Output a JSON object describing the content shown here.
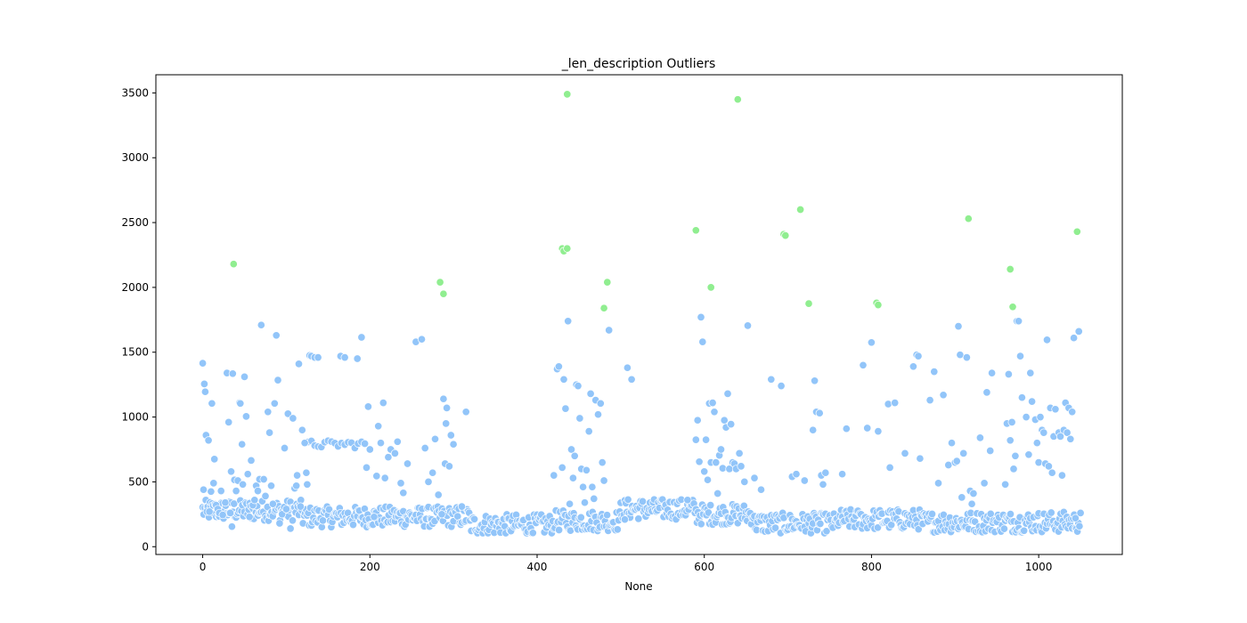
{
  "chart_data": {
    "type": "scatter",
    "title": "_len_description Outliers",
    "xlabel": "None",
    "ylabel": "",
    "xlim": [
      -56,
      1100
    ],
    "ylim": [
      -60,
      3640
    ],
    "xticks": [
      0,
      200,
      400,
      600,
      800,
      1000
    ],
    "yticks": [
      0,
      500,
      1000,
      1500,
      2000,
      2500,
      3000,
      3500
    ],
    "grid": false,
    "legend": "none",
    "colors": {
      "normal": "#92c5f9",
      "outlier": "#90ee90",
      "marker_edge": "#ffffff"
    },
    "series": [
      {
        "points": [
          [
            0,
            1415
          ],
          [
            1,
            440
          ],
          [
            2,
            1255
          ],
          [
            3,
            1195
          ],
          [
            4,
            860
          ],
          [
            5,
            270
          ],
          [
            7,
            820
          ],
          [
            8,
            270
          ],
          [
            10,
            425
          ],
          [
            11,
            1105
          ],
          [
            13,
            490
          ],
          [
            14,
            675
          ],
          [
            16,
            320
          ],
          [
            18,
            290
          ],
          [
            20,
            260
          ],
          [
            22,
            430
          ],
          [
            24,
            245
          ],
          [
            27,
            340
          ],
          [
            29,
            1340
          ],
          [
            31,
            960
          ],
          [
            33,
            260
          ],
          [
            34,
            580
          ],
          [
            35,
            155
          ],
          [
            36,
            1335
          ],
          [
            38,
            515
          ],
          [
            40,
            430
          ],
          [
            42,
            510
          ],
          [
            44,
            1110
          ],
          [
            45,
            1105
          ],
          [
            47,
            790
          ],
          [
            48,
            480
          ],
          [
            50,
            1310
          ],
          [
            52,
            1005
          ],
          [
            54,
            560
          ],
          [
            56,
            230
          ],
          [
            58,
            665
          ],
          [
            60,
            320
          ],
          [
            62,
            360
          ],
          [
            64,
            470
          ],
          [
            66,
            430
          ],
          [
            68,
            520
          ],
          [
            70,
            1710
          ],
          [
            73,
            520
          ],
          [
            75,
            390
          ],
          [
            78,
            1040
          ],
          [
            80,
            880
          ],
          [
            82,
            470
          ],
          [
            84,
            330
          ],
          [
            86,
            1105
          ],
          [
            88,
            1630
          ],
          [
            90,
            1285
          ],
          [
            92,
            180
          ],
          [
            95,
            250
          ],
          [
            98,
            760
          ],
          [
            100,
            290
          ],
          [
            102,
            1025
          ],
          [
            105,
            140
          ],
          [
            108,
            990
          ],
          [
            110,
            450
          ],
          [
            112,
            470
          ],
          [
            113,
            550
          ],
          [
            115,
            1410
          ],
          [
            117,
            310
          ],
          [
            119,
            900
          ],
          [
            122,
            800
          ],
          [
            124,
            570
          ],
          [
            125,
            480
          ],
          [
            128,
            1475
          ],
          [
            130,
            1470
          ],
          [
            134,
            1460
          ],
          [
            138,
            1460
          ],
          [
            165,
            1470
          ],
          [
            170,
            1460
          ],
          [
            185,
            1450
          ],
          [
            190,
            1615
          ],
          [
            196,
            610
          ],
          [
            198,
            1080
          ],
          [
            200,
            750
          ],
          [
            205,
            230
          ],
          [
            208,
            545
          ],
          [
            210,
            930
          ],
          [
            213,
            800
          ],
          [
            216,
            1110
          ],
          [
            218,
            530
          ],
          [
            222,
            690
          ],
          [
            225,
            750
          ],
          [
            230,
            720
          ],
          [
            233,
            810
          ],
          [
            237,
            490
          ],
          [
            240,
            415
          ],
          [
            245,
            640
          ],
          [
            255,
            1580
          ],
          [
            262,
            1600
          ],
          [
            266,
            760
          ],
          [
            270,
            500
          ],
          [
            275,
            570
          ],
          [
            278,
            830
          ],
          [
            282,
            400
          ],
          [
            286,
            250
          ],
          [
            288,
            1140
          ],
          [
            290,
            640
          ],
          [
            291,
            950
          ],
          [
            292,
            1070
          ],
          [
            295,
            620
          ],
          [
            297,
            860
          ],
          [
            300,
            790
          ],
          [
            310,
            310
          ],
          [
            315,
            1040
          ],
          [
            420,
            550
          ],
          [
            424,
            1370
          ],
          [
            426,
            1390
          ],
          [
            430,
            610
          ],
          [
            432,
            1290
          ],
          [
            434,
            1065
          ],
          [
            437,
            1740
          ],
          [
            439,
            330
          ],
          [
            441,
            750
          ],
          [
            443,
            530
          ],
          [
            445,
            700
          ],
          [
            447,
            1250
          ],
          [
            449,
            1240
          ],
          [
            451,
            990
          ],
          [
            453,
            600
          ],
          [
            455,
            460
          ],
          [
            457,
            340
          ],
          [
            459,
            590
          ],
          [
            462,
            890
          ],
          [
            464,
            1180
          ],
          [
            466,
            460
          ],
          [
            468,
            370
          ],
          [
            470,
            1130
          ],
          [
            473,
            1020
          ],
          [
            476,
            1105
          ],
          [
            478,
            650
          ],
          [
            480,
            510
          ],
          [
            486,
            1670
          ],
          [
            505,
            210
          ],
          [
            508,
            1380
          ],
          [
            513,
            1290
          ],
          [
            580,
            360
          ],
          [
            590,
            825
          ],
          [
            592,
            975
          ],
          [
            594,
            655
          ],
          [
            596,
            1770
          ],
          [
            598,
            1580
          ],
          [
            600,
            580
          ],
          [
            602,
            825
          ],
          [
            604,
            515
          ],
          [
            606,
            1105
          ],
          [
            608,
            650
          ],
          [
            610,
            1110
          ],
          [
            612,
            1040
          ],
          [
            614,
            650
          ],
          [
            616,
            410
          ],
          [
            618,
            705
          ],
          [
            620,
            750
          ],
          [
            622,
            605
          ],
          [
            624,
            975
          ],
          [
            626,
            920
          ],
          [
            628,
            1180
          ],
          [
            630,
            600
          ],
          [
            632,
            945
          ],
          [
            634,
            650
          ],
          [
            636,
            640
          ],
          [
            638,
            600
          ],
          [
            642,
            720
          ],
          [
            644,
            620
          ],
          [
            648,
            500
          ],
          [
            652,
            1705
          ],
          [
            660,
            530
          ],
          [
            668,
            440
          ],
          [
            680,
            1290
          ],
          [
            692,
            1240
          ],
          [
            705,
            540
          ],
          [
            710,
            560
          ],
          [
            720,
            510
          ],
          [
            730,
            900
          ],
          [
            732,
            1280
          ],
          [
            734,
            1040
          ],
          [
            738,
            1030
          ],
          [
            740,
            550
          ],
          [
            742,
            480
          ],
          [
            745,
            570
          ],
          [
            765,
            560
          ],
          [
            770,
            910
          ],
          [
            790,
            1400
          ],
          [
            795,
            915
          ],
          [
            800,
            1575
          ],
          [
            808,
            890
          ],
          [
            820,
            1100
          ],
          [
            822,
            610
          ],
          [
            828,
            1110
          ],
          [
            840,
            720
          ],
          [
            850,
            1390
          ],
          [
            854,
            1480
          ],
          [
            856,
            1470
          ],
          [
            858,
            680
          ],
          [
            870,
            1130
          ],
          [
            875,
            1350
          ],
          [
            880,
            490
          ],
          [
            886,
            1170
          ],
          [
            892,
            630
          ],
          [
            896,
            800
          ],
          [
            900,
            650
          ],
          [
            902,
            660
          ],
          [
            904,
            1700
          ],
          [
            906,
            1480
          ],
          [
            908,
            380
          ],
          [
            910,
            720
          ],
          [
            914,
            1460
          ],
          [
            918,
            430
          ],
          [
            920,
            330
          ],
          [
            922,
            410
          ],
          [
            930,
            840
          ],
          [
            935,
            490
          ],
          [
            938,
            1190
          ],
          [
            942,
            740
          ],
          [
            944,
            1340
          ],
          [
            960,
            480
          ],
          [
            962,
            950
          ],
          [
            964,
            1330
          ],
          [
            966,
            820
          ],
          [
            968,
            960
          ],
          [
            970,
            600
          ],
          [
            972,
            700
          ],
          [
            974,
            1740
          ],
          [
            976,
            1740
          ],
          [
            978,
            1470
          ],
          [
            980,
            1150
          ],
          [
            985,
            1000
          ],
          [
            988,
            710
          ],
          [
            990,
            1340
          ],
          [
            992,
            1120
          ],
          [
            996,
            980
          ],
          [
            998,
            800
          ],
          [
            1000,
            650
          ],
          [
            1002,
            1000
          ],
          [
            1004,
            900
          ],
          [
            1006,
            880
          ],
          [
            1008,
            640
          ],
          [
            1010,
            1595
          ],
          [
            1012,
            620
          ],
          [
            1014,
            1070
          ],
          [
            1016,
            570
          ],
          [
            1018,
            850
          ],
          [
            1020,
            1060
          ],
          [
            1024,
            880
          ],
          [
            1026,
            850
          ],
          [
            1028,
            550
          ],
          [
            1030,
            900
          ],
          [
            1032,
            1110
          ],
          [
            1034,
            880
          ],
          [
            1036,
            1070
          ],
          [
            1038,
            830
          ],
          [
            1040,
            1040
          ],
          [
            1042,
            1610
          ],
          [
            1044,
            220
          ],
          [
            1048,
            1660
          ],
          [
            1050,
            260
          ]
        ]
      },
      {
        "points": [
          [
            37,
            2180
          ],
          [
            284,
            2040
          ],
          [
            288,
            1950
          ],
          [
            430,
            2300
          ],
          [
            432,
            2280
          ],
          [
            436,
            2300
          ],
          [
            436,
            3490
          ],
          [
            480,
            1840
          ],
          [
            484,
            2040
          ],
          [
            590,
            2440
          ],
          [
            608,
            2000
          ],
          [
            640,
            3450
          ],
          [
            695,
            2410
          ],
          [
            697,
            2400
          ],
          [
            715,
            2600
          ],
          [
            725,
            1875
          ],
          [
            806,
            1880
          ],
          [
            808,
            1865
          ],
          [
            916,
            2530
          ],
          [
            966,
            2140
          ],
          [
            969,
            1850
          ],
          [
            1046,
            2430
          ]
        ]
      }
    ]
  }
}
